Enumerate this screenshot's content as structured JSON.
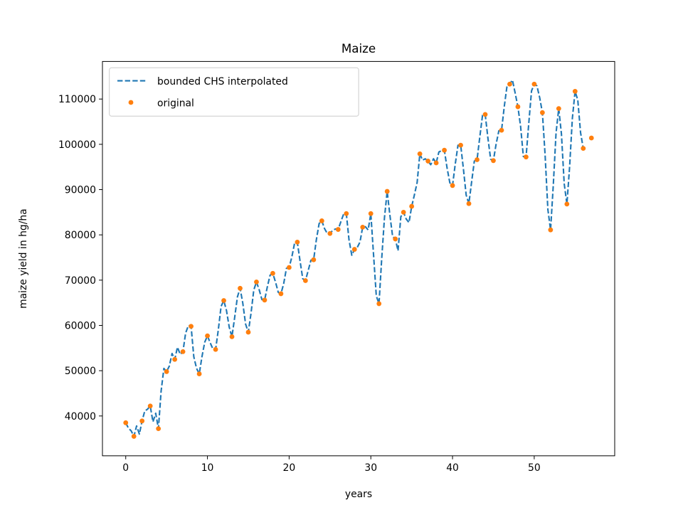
{
  "chart_data": {
    "type": "line",
    "title": "Maize",
    "xlabel": "years",
    "ylabel": "maize yield in hg/ha",
    "xlim": [
      -2.85,
      59.85
    ],
    "ylim": [
      31200,
      118300
    ],
    "xticks": [
      0,
      10,
      20,
      30,
      40,
      50
    ],
    "yticks": [
      40000,
      50000,
      60000,
      70000,
      80000,
      90000,
      100000,
      110000
    ],
    "grid": false,
    "legend_position": "top-left",
    "legend": [
      "bounded CHS interpolated",
      "original"
    ],
    "series": [
      {
        "name": "original",
        "style": "points",
        "color": "#ff7f0e",
        "x": [
          0,
          1,
          2,
          3,
          4,
          5,
          6,
          7,
          8,
          9,
          10,
          11,
          12,
          13,
          14,
          15,
          16,
          17,
          18,
          19,
          20,
          21,
          22,
          23,
          24,
          25,
          26,
          27,
          28,
          29,
          30,
          31,
          32,
          33,
          34,
          35,
          36,
          37,
          38,
          39,
          40,
          41,
          42,
          43,
          44,
          45,
          46,
          47,
          48,
          49,
          50,
          51,
          52,
          53,
          54,
          55,
          56,
          57
        ],
        "values": [
          38500,
          35500,
          38900,
          42200,
          37200,
          49800,
          52500,
          54200,
          59800,
          49300,
          57700,
          54700,
          65500,
          57500,
          68200,
          58500,
          69600,
          65600,
          71500,
          67000,
          72800,
          78400,
          69900,
          74500,
          83100,
          80300,
          81200,
          84700,
          76800,
          81700,
          84700,
          64800,
          89600,
          79100,
          85000,
          86300,
          97900,
          96300,
          95900,
          98700,
          90900,
          99800,
          86900,
          96600,
          106600,
          96400,
          103100,
          113300,
          108300,
          97200,
          113300,
          107000,
          81100,
          107900,
          86800,
          111700,
          99100,
          101400
        ]
      },
      {
        "name": "bounded CHS interpolated",
        "style": "dashed",
        "color": "#1f77b4",
        "x": [
          0,
          0.33,
          0.67,
          1,
          1.33,
          1.67,
          2,
          2.33,
          2.67,
          3,
          3.33,
          3.67,
          4,
          4.33,
          4.67,
          5,
          5.33,
          5.67,
          6,
          6.33,
          6.67,
          7,
          7.33,
          7.67,
          8,
          8.33,
          8.67,
          9,
          9.33,
          9.67,
          10,
          10.33,
          10.67,
          11,
          11.33,
          11.67,
          12,
          12.33,
          12.67,
          13,
          13.33,
          13.67,
          14,
          14.33,
          14.67,
          15,
          15.33,
          15.67,
          16,
          16.33,
          16.67,
          17,
          17.33,
          17.67,
          18,
          18.33,
          18.67,
          19,
          19.33,
          19.67,
          20,
          20.33,
          20.67,
          21,
          21.33,
          21.67,
          22,
          22.33,
          22.67,
          23,
          23.33,
          23.67,
          24,
          24.33,
          24.67,
          25,
          25.33,
          25.67,
          26,
          26.33,
          26.67,
          27,
          27.33,
          27.67,
          28,
          28.33,
          28.67,
          29,
          29.33,
          29.67,
          30,
          30.33,
          30.67,
          31,
          31.33,
          31.67,
          32,
          32.33,
          32.67,
          33,
          33.33,
          33.67,
          34,
          34.33,
          34.67,
          35,
          35.33,
          35.67,
          36,
          36.33,
          36.67,
          37,
          37.33,
          37.67,
          38,
          38.33,
          38.67,
          39,
          39.33,
          39.67,
          40,
          40.33,
          40.67,
          41,
          41.33,
          41.67,
          42,
          42.33,
          42.67,
          43,
          43.33,
          43.67,
          44,
          44.33,
          44.67,
          45,
          45.33,
          45.67,
          46,
          46.33,
          46.67,
          47,
          47.33,
          47.67,
          48,
          48.33,
          48.67,
          49,
          49.33,
          49.67,
          50,
          50.33,
          50.67,
          51,
          51.33,
          51.67,
          52,
          52.33,
          52.67,
          53,
          53.33,
          53.67,
          54,
          54.33,
          54.67,
          55,
          55.33,
          55.67,
          56
        ],
        "values": [
          38500,
          37300,
          36700,
          35500,
          37800,
          36000,
          38900,
          41100,
          41500,
          42200,
          38700,
          40600,
          37200,
          45500,
          50500,
          49800,
          51000,
          53800,
          52500,
          55200,
          53600,
          54200,
          58300,
          60000,
          59800,
          53100,
          50500,
          49300,
          53100,
          56300,
          57700,
          56200,
          54800,
          54700,
          59000,
          64200,
          65500,
          63300,
          59600,
          57500,
          61700,
          66300,
          68200,
          64900,
          60300,
          58500,
          62600,
          67800,
          69600,
          67900,
          65700,
          65600,
          68500,
          71100,
          71500,
          69600,
          67300,
          67000,
          69200,
          72600,
          72800,
          75100,
          78200,
          78400,
          74300,
          70300,
          69900,
          72100,
          74400,
          74500,
          78900,
          82500,
          83100,
          81400,
          80300,
          80300,
          81000,
          81300,
          81200,
          82900,
          84600,
          84700,
          78900,
          75500,
          76800,
          77200,
          78400,
          81700,
          81800,
          81100,
          84700,
          75700,
          66500,
          64800,
          74700,
          83800,
          89600,
          84400,
          79600,
          79100,
          76500,
          84000,
          85000,
          83500,
          82700,
          86300,
          88800,
          91600,
          97900,
          96500,
          96800,
          96300,
          95500,
          96800,
          95900,
          98300,
          98600,
          98700,
          94800,
          91500,
          90900,
          95600,
          99800,
          99800,
          94600,
          88800,
          86900,
          91600,
          96300,
          96600,
          101500,
          106400,
          106600,
          101400,
          96700,
          96400,
          100000,
          103000,
          103100,
          108300,
          112900,
          113300,
          114200,
          111300,
          108300,
          104000,
          97300,
          97200,
          104600,
          111800,
          113300,
          112900,
          110300,
          107000,
          97700,
          85600,
          81100,
          90900,
          102500,
          107900,
          102300,
          91300,
          86800,
          95000,
          105800,
          111700,
          109800,
          102600,
          99100
        ]
      }
    ]
  }
}
